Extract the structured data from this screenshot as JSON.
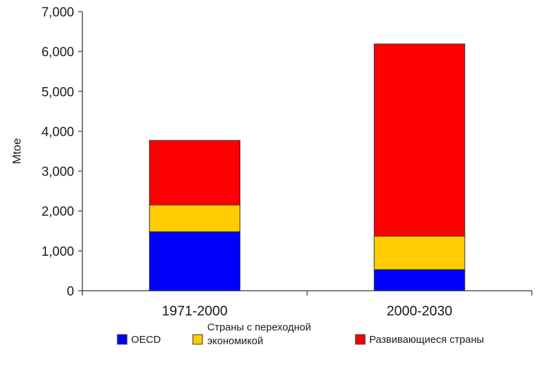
{
  "chart_data": {
    "type": "bar",
    "stacked": true,
    "title": "",
    "xlabel": "",
    "ylabel": "Mtoe",
    "ylim": [
      0,
      7000
    ],
    "yticks": [
      0,
      1000,
      2000,
      3000,
      4000,
      5000,
      6000,
      7000
    ],
    "ytick_labels": [
      "0",
      "1,000",
      "2,000",
      "3,000",
      "4,000",
      "5,000",
      "6,000",
      "7,000"
    ],
    "categories": [
      "1971-2000",
      "2000-2030"
    ],
    "series": [
      {
        "name": "OECD",
        "color": "#0000ff",
        "values": [
          1480,
          530
        ]
      },
      {
        "name": "Страны с переходной экономикой",
        "legend_lines": [
          "Страны с переходной",
          "экономикой"
        ],
        "color": "#ffcc00",
        "values": [
          670,
          840
        ]
      },
      {
        "name": "Развивающиеся страны",
        "color": "#ff0000",
        "values": [
          1620,
          4820
        ]
      }
    ],
    "grid": false,
    "legend_position": "bottom"
  }
}
